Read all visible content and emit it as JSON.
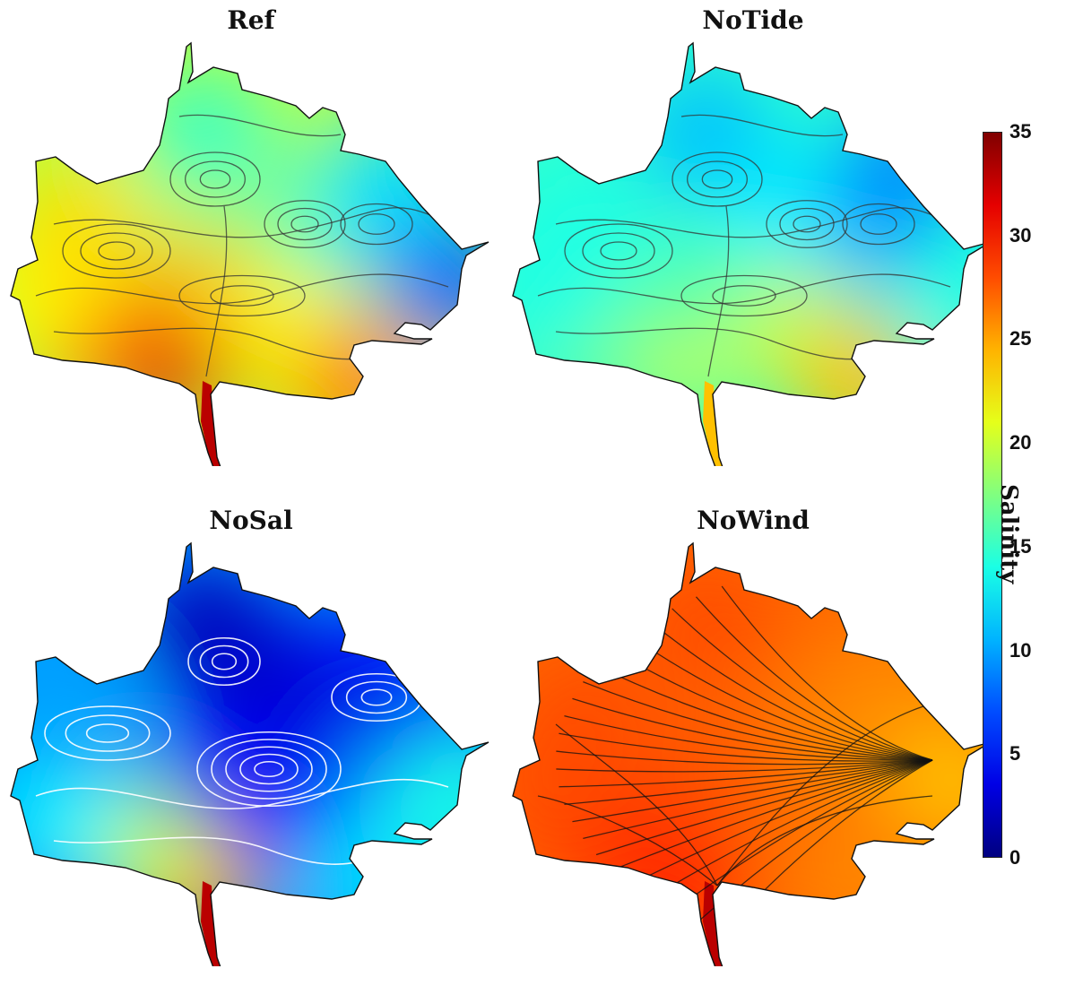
{
  "chart_data": {
    "type": "heatmap",
    "colorbar": {
      "label": "Salinity",
      "range": [
        0,
        35
      ],
      "ticks": [
        0,
        5,
        10,
        15,
        20,
        25,
        30,
        35
      ],
      "colormap": "jet"
    },
    "panels": [
      {
        "title": "Ref",
        "streamline_color": "#333333",
        "salinity_points": [
          {
            "x": 0.35,
            "y": 0.7,
            "v": 32
          },
          {
            "x": 0.18,
            "y": 0.65,
            "v": 28
          },
          {
            "x": 0.08,
            "y": 0.55,
            "v": 22
          },
          {
            "x": 0.15,
            "y": 0.42,
            "v": 23
          },
          {
            "x": 0.45,
            "y": 0.55,
            "v": 24
          },
          {
            "x": 0.6,
            "y": 0.65,
            "v": 22
          },
          {
            "x": 0.72,
            "y": 0.78,
            "v": 26
          },
          {
            "x": 0.55,
            "y": 0.35,
            "v": 18
          },
          {
            "x": 0.4,
            "y": 0.2,
            "v": 15
          },
          {
            "x": 0.7,
            "y": 0.4,
            "v": 15
          },
          {
            "x": 0.85,
            "y": 0.45,
            "v": 9
          },
          {
            "x": 0.8,
            "y": 0.3,
            "v": 12
          },
          {
            "x": 0.93,
            "y": 0.55,
            "v": 8
          }
        ]
      },
      {
        "title": "NoTide",
        "streamline_color": "#333333",
        "salinity_points": [
          {
            "x": 0.35,
            "y": 0.7,
            "v": 20
          },
          {
            "x": 0.18,
            "y": 0.65,
            "v": 17
          },
          {
            "x": 0.08,
            "y": 0.55,
            "v": 14
          },
          {
            "x": 0.15,
            "y": 0.42,
            "v": 14
          },
          {
            "x": 0.45,
            "y": 0.55,
            "v": 16
          },
          {
            "x": 0.6,
            "y": 0.65,
            "v": 20
          },
          {
            "x": 0.72,
            "y": 0.78,
            "v": 24
          },
          {
            "x": 0.55,
            "y": 0.35,
            "v": 13
          },
          {
            "x": 0.4,
            "y": 0.2,
            "v": 11
          },
          {
            "x": 0.7,
            "y": 0.4,
            "v": 12
          },
          {
            "x": 0.85,
            "y": 0.45,
            "v": 8
          },
          {
            "x": 0.8,
            "y": 0.3,
            "v": 9
          },
          {
            "x": 0.93,
            "y": 0.55,
            "v": 14
          }
        ]
      },
      {
        "title": "NoSal",
        "streamline_color": "#ffffff",
        "salinity_points": [
          {
            "x": 0.38,
            "y": 0.78,
            "v": 26
          },
          {
            "x": 0.28,
            "y": 0.68,
            "v": 20
          },
          {
            "x": 0.1,
            "y": 0.6,
            "v": 13
          },
          {
            "x": 0.12,
            "y": 0.4,
            "v": 10
          },
          {
            "x": 0.45,
            "y": 0.5,
            "v": 4
          },
          {
            "x": 0.6,
            "y": 0.6,
            "v": 5
          },
          {
            "x": 0.75,
            "y": 0.75,
            "v": 12
          },
          {
            "x": 0.55,
            "y": 0.3,
            "v": 3
          },
          {
            "x": 0.4,
            "y": 0.18,
            "v": 2
          },
          {
            "x": 0.7,
            "y": 0.35,
            "v": 3
          },
          {
            "x": 0.85,
            "y": 0.5,
            "v": 10
          },
          {
            "x": 0.8,
            "y": 0.3,
            "v": 4
          },
          {
            "x": 0.93,
            "y": 0.6,
            "v": 14
          }
        ]
      },
      {
        "title": "NoWind",
        "streamline_color": "#111111",
        "salinity_points": [
          {
            "x": 0.35,
            "y": 0.75,
            "v": 30
          },
          {
            "x": 0.18,
            "y": 0.65,
            "v": 29
          },
          {
            "x": 0.08,
            "y": 0.55,
            "v": 28
          },
          {
            "x": 0.15,
            "y": 0.4,
            "v": 28
          },
          {
            "x": 0.45,
            "y": 0.55,
            "v": 28
          },
          {
            "x": 0.6,
            "y": 0.65,
            "v": 27
          },
          {
            "x": 0.72,
            "y": 0.78,
            "v": 26
          },
          {
            "x": 0.55,
            "y": 0.35,
            "v": 27
          },
          {
            "x": 0.4,
            "y": 0.18,
            "v": 28
          },
          {
            "x": 0.7,
            "y": 0.4,
            "v": 26
          },
          {
            "x": 0.85,
            "y": 0.45,
            "v": 25
          },
          {
            "x": 0.8,
            "y": 0.3,
            "v": 26
          },
          {
            "x": 0.93,
            "y": 0.55,
            "v": 24
          }
        ]
      }
    ]
  }
}
